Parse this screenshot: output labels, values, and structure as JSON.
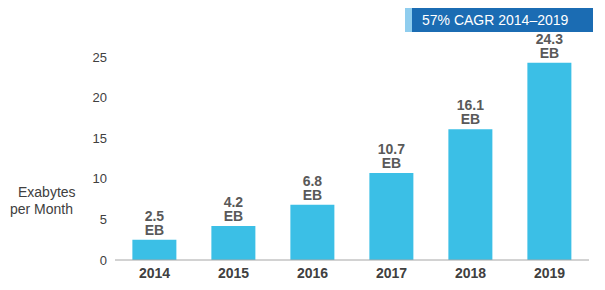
{
  "chart_data": {
    "type": "bar",
    "y_label": "Exabytes per Month",
    "annotation": "57% CAGR 2014–2019",
    "categories": [
      "2014",
      "2015",
      "2016",
      "2017",
      "2018",
      "2019"
    ],
    "values": [
      2.5,
      4.2,
      6.8,
      10.7,
      16.1,
      24.3
    ],
    "value_labels": [
      "2.5 EB",
      "4.2 EB",
      "6.8 EB",
      "10.7 EB",
      "16.1 EB",
      "24.3 EB"
    ],
    "color": "#3bbfe6",
    "ylim": [
      0,
      25
    ],
    "yticks": [
      0,
      5,
      10,
      15,
      20,
      25
    ],
    "grid": false,
    "data_labels": true
  }
}
